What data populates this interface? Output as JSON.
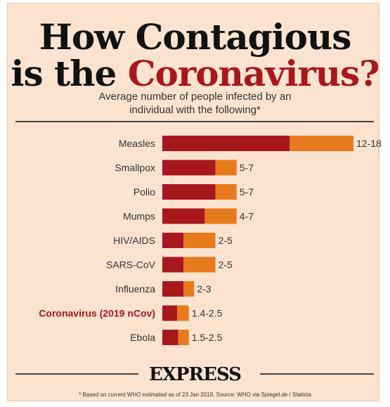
{
  "header": {
    "title_line1": "How Contagious",
    "title_line2_prefix": "is the ",
    "title_line2_accent": "Coronavirus?",
    "subtitle_line1": "Average number of people infected by an",
    "subtitle_line2": "individual with the following*"
  },
  "colors": {
    "background": "#fbe3d0",
    "low_segment": "#a8171c",
    "high_segment": "#e87a1e",
    "highlight_label": "#a8171c",
    "text": "#333333"
  },
  "chart_data": {
    "type": "bar",
    "orientation": "horizontal",
    "stacked": true,
    "categories": [
      "Measles",
      "Smallpox",
      "Polio",
      "Mumps",
      "HIV/AIDS",
      "SARS-CoV",
      "Influenza",
      "Coronavirus (2019 nCov)",
      "Ebola"
    ],
    "highlight_category": "Coronavirus (2019 nCov)",
    "range_low": [
      12,
      5,
      5,
      4,
      2,
      2,
      2,
      1.4,
      1.5
    ],
    "range_high": [
      18,
      7,
      7,
      7,
      5,
      5,
      3,
      2.5,
      2.5
    ],
    "value_labels": [
      "12-18",
      "5-7",
      "5-7",
      "4-7",
      "2-5",
      "2-5",
      "2-3",
      "1.4-2.5",
      "1.5-2.5"
    ],
    "xlim": [
      0,
      18
    ],
    "grid": false,
    "legend": "none"
  },
  "footer": {
    "brand": "EXPRESS",
    "footnote": "* Based on current WHO estimated as of 23 Jan 2019. Source: WHO via Spiegel.de / Statista"
  }
}
